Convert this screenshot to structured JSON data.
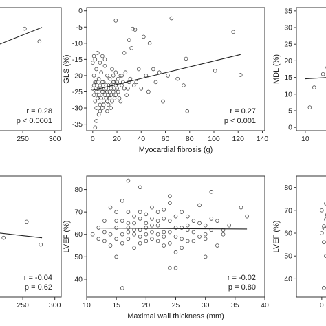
{
  "chart_data": [
    {
      "id": "p1",
      "type": "scatter",
      "title": "",
      "xlabel": "",
      "ylabel": "",
      "xlim": [
        150,
        310
      ],
      "ylim": [
        -3,
        25
      ],
      "xticks": [
        "250",
        "300"
      ],
      "xtick_values": [
        250,
        300
      ],
      "yticks": [],
      "ytick_values": [],
      "points": [
        [
          253,
          20.2
        ],
        [
          276,
          17.3
        ],
        [
          205,
          16.1
        ],
        [
          190,
          13.0
        ],
        [
          170,
          11.0
        ]
      ],
      "fit": [
        [
          150,
          13.0
        ],
        [
          280,
          20.5
        ]
      ],
      "stats": [
        "r = 0.28",
        "p < 0.0001"
      ]
    },
    {
      "id": "p2",
      "type": "scatter",
      "title": "",
      "xlabel": "Myocardial fibrosis (g)",
      "ylabel": "GLS (%)",
      "xlim": [
        -5,
        142
      ],
      "ylim": [
        -37,
        1
      ],
      "xticks": [
        "0",
        "20",
        "40",
        "60",
        "80",
        "100",
        "120",
        "140"
      ],
      "xtick_values": [
        0,
        20,
        40,
        60,
        80,
        100,
        120,
        140
      ],
      "yticks": [
        "0",
        "-5",
        "-10",
        "-15",
        "-20",
        "-25",
        "-30",
        "-35"
      ],
      "ytick_values": [
        0,
        -5,
        -10,
        -15,
        -20,
        -25,
        -30,
        -35
      ],
      "points": [
        [
          19,
          -3
        ],
        [
          65,
          -2.3
        ],
        [
          33,
          -5.5
        ],
        [
          35,
          -5.8
        ],
        [
          42,
          -8
        ],
        [
          116,
          -6.5
        ],
        [
          47,
          -10
        ],
        [
          30,
          -9
        ],
        [
          32,
          -11.5
        ],
        [
          26,
          -13
        ],
        [
          77,
          -14.8
        ],
        [
          101,
          -18.5
        ],
        [
          122,
          -19.8
        ],
        [
          50,
          -18
        ],
        [
          62,
          -20
        ],
        [
          70,
          -21
        ],
        [
          75,
          -23
        ],
        [
          78,
          -31
        ],
        [
          58,
          -28
        ],
        [
          40,
          -24
        ],
        [
          36,
          -22
        ],
        [
          28,
          -26
        ],
        [
          24,
          -20
        ],
        [
          18,
          -27
        ],
        [
          14,
          -25
        ],
        [
          12,
          -28
        ],
        [
          8,
          -30
        ],
        [
          5,
          -32
        ],
        [
          3,
          -34
        ],
        [
          2,
          -36
        ],
        [
          0,
          -16
        ],
        [
          1,
          -20
        ],
        [
          2,
          -22
        ],
        [
          3,
          -18
        ],
        [
          4,
          -24
        ],
        [
          5,
          -21
        ],
        [
          6,
          -23
        ],
        [
          7,
          -19
        ],
        [
          8,
          -25
        ],
        [
          9,
          -22
        ],
        [
          10,
          -17
        ],
        [
          11,
          -24
        ],
        [
          12,
          -20
        ],
        [
          13,
          -26
        ],
        [
          14,
          -21
        ],
        [
          15,
          -23
        ],
        [
          16,
          -18
        ],
        [
          17,
          -25
        ],
        [
          18,
          -22
        ],
        [
          19,
          -19
        ],
        [
          20,
          -24
        ],
        [
          21,
          -21
        ],
        [
          22,
          -27
        ],
        [
          23,
          -20
        ],
        [
          24,
          -23
        ],
        [
          25,
          -22
        ],
        [
          27,
          -19
        ],
        [
          29,
          -24
        ],
        [
          31,
          -21
        ],
        [
          34,
          -23
        ],
        [
          38,
          -18
        ],
        [
          44,
          -20
        ],
        [
          46,
          -25
        ],
        [
          52,
          -22
        ],
        [
          55,
          -19
        ],
        [
          0,
          -24
        ],
        [
          1,
          -26
        ],
        [
          2,
          -28
        ],
        [
          3,
          -25
        ],
        [
          4,
          -27
        ],
        [
          5,
          -26
        ],
        [
          6,
          -29
        ],
        [
          7,
          -24
        ],
        [
          8,
          -22
        ],
        [
          9,
          -28
        ],
        [
          10,
          -26
        ],
        [
          11,
          -23
        ],
        [
          12,
          -25
        ],
        [
          13,
          -29
        ],
        [
          14,
          -27
        ],
        [
          15,
          -24
        ],
        [
          16,
          -28
        ],
        [
          17,
          -22
        ],
        [
          18,
          -24
        ],
        [
          19,
          -26
        ],
        [
          20,
          -22
        ],
        [
          1,
          -14
        ],
        [
          2,
          -15
        ],
        [
          4,
          -13
        ],
        [
          6,
          -16
        ],
        [
          8,
          -14
        ],
        [
          10,
          -15
        ],
        [
          3,
          -30
        ],
        [
          6,
          -31
        ],
        [
          9,
          -29
        ],
        [
          12,
          -31
        ],
        [
          15,
          -30
        ],
        [
          1,
          -23
        ],
        [
          3,
          -22
        ],
        [
          5,
          -24
        ],
        [
          7,
          -27
        ],
        [
          9,
          -25
        ],
        [
          11,
          -27
        ],
        [
          13,
          -23
        ],
        [
          15,
          -26
        ],
        [
          17,
          -20
        ],
        [
          19,
          -23
        ],
        [
          21,
          -25
        ],
        [
          23,
          -28
        ],
        [
          26,
          -24
        ],
        [
          30,
          -22
        ]
      ],
      "fit": [
        [
          0,
          -24.5
        ],
        [
          122,
          -13.5
        ]
      ],
      "stats": [
        "r = 0.27",
        "p < 0.001"
      ]
    },
    {
      "id": "p3",
      "type": "scatter",
      "title": "",
      "xlabel": "",
      "ylabel": "MDL (%)",
      "xlim": [
        9,
        19
      ],
      "ylim": [
        -1,
        36
      ],
      "xticks": [
        "10"
      ],
      "xtick_values": [
        10
      ],
      "yticks": [
        "0",
        "5",
        "10",
        "15",
        "20",
        "25",
        "30",
        "35"
      ],
      "ytick_values": [
        0,
        5,
        10,
        15,
        20,
        25,
        30,
        35
      ],
      "points": [
        [
          13.5,
          25
        ],
        [
          15.5,
          23
        ],
        [
          11,
          12
        ],
        [
          12,
          16
        ],
        [
          13,
          14
        ],
        [
          13.5,
          12
        ],
        [
          14,
          10
        ],
        [
          14.5,
          13
        ],
        [
          15,
          8
        ],
        [
          15.5,
          11
        ],
        [
          16,
          9
        ],
        [
          16.5,
          15
        ],
        [
          17,
          12
        ],
        [
          17.5,
          7
        ],
        [
          10.5,
          6
        ],
        [
          12.5,
          18
        ],
        [
          14,
          20
        ],
        [
          16,
          18
        ],
        [
          17,
          14
        ],
        [
          17.5,
          10
        ]
      ],
      "fit": [
        [
          10,
          14.6
        ],
        [
          19,
          16.0
        ]
      ],
      "stats": []
    },
    {
      "id": "p4",
      "type": "scatter",
      "title": "",
      "xlabel": "",
      "ylabel": "",
      "xlim": [
        150,
        310
      ],
      "ylim": [
        32,
        85
      ],
      "xticks": [
        "250",
        "300"
      ],
      "xtick_values": [
        250,
        300
      ],
      "yticks": [],
      "ytick_values": [],
      "points": [
        [
          256,
          65
        ],
        [
          278,
          55
        ],
        [
          220,
          58
        ],
        [
          200,
          60
        ],
        [
          180,
          62
        ]
      ],
      "fit": [
        [
          150,
          62
        ],
        [
          280,
          58
        ]
      ],
      "stats": [
        "r = -0.04",
        "p = 0.62"
      ]
    },
    {
      "id": "p5",
      "type": "scatter",
      "title": "",
      "xlabel": "Maximal wall thickness (mm)",
      "ylabel": "LVEF (%)",
      "xlim": [
        10,
        40
      ],
      "ylim": [
        32,
        86
      ],
      "xticks": [
        "10",
        "15",
        "20",
        "25",
        "30",
        "35",
        "40"
      ],
      "xtick_values": [
        10,
        15,
        20,
        25,
        30,
        35,
        40
      ],
      "yticks": [
        "40",
        "50",
        "60",
        "70",
        "80"
      ],
      "ytick_values": [
        40,
        50,
        60,
        70,
        80
      ],
      "points": [
        [
          17,
          84
        ],
        [
          19,
          81
        ],
        [
          24,
          77
        ],
        [
          31,
          79
        ],
        [
          16,
          36
        ],
        [
          24,
          45
        ],
        [
          25,
          45
        ],
        [
          30,
          50
        ],
        [
          15,
          50
        ],
        [
          13,
          57
        ],
        [
          14,
          60
        ],
        [
          15,
          63
        ],
        [
          16,
          66
        ],
        [
          17,
          58
        ],
        [
          18,
          62
        ],
        [
          19,
          67
        ],
        [
          20,
          60
        ],
        [
          21,
          64
        ],
        [
          22,
          57
        ],
        [
          23,
          61
        ],
        [
          24,
          66
        ],
        [
          25,
          59
        ],
        [
          26,
          63
        ],
        [
          27,
          68
        ],
        [
          28,
          61
        ],
        [
          29,
          65
        ],
        [
          30,
          58
        ],
        [
          31,
          62
        ],
        [
          32,
          66
        ],
        [
          33,
          60
        ],
        [
          34,
          64
        ],
        [
          36,
          72
        ],
        [
          37,
          68
        ],
        [
          12,
          63
        ],
        [
          13,
          66
        ],
        [
          14,
          55
        ],
        [
          15,
          70
        ],
        [
          16,
          60
        ],
        [
          17,
          65
        ],
        [
          18,
          54
        ],
        [
          19,
          62
        ],
        [
          20,
          69
        ],
        [
          21,
          58
        ],
        [
          22,
          64
        ],
        [
          23,
          71
        ],
        [
          24,
          56
        ],
        [
          25,
          63
        ],
        [
          26,
          70
        ],
        [
          27,
          57
        ],
        [
          28,
          66
        ],
        [
          29,
          73
        ],
        [
          30,
          60
        ],
        [
          31,
          67
        ],
        [
          32,
          55
        ],
        [
          33,
          62
        ],
        [
          14,
          72
        ],
        [
          15,
          58
        ],
        [
          16,
          75
        ],
        [
          17,
          61
        ],
        [
          18,
          68
        ],
        [
          19,
          56
        ],
        [
          20,
          65
        ],
        [
          21,
          72
        ],
        [
          22,
          60
        ],
        [
          23,
          67
        ],
        [
          24,
          74
        ],
        [
          25,
          52
        ],
        [
          26,
          58
        ],
        [
          27,
          64
        ],
        [
          18,
          60
        ],
        [
          17,
          70
        ],
        [
          16,
          56
        ],
        [
          15,
          66
        ],
        [
          19,
          59
        ],
        [
          20,
          63
        ],
        [
          21,
          67
        ],
        [
          22,
          70
        ],
        [
          23,
          55
        ],
        [
          24,
          61
        ],
        [
          25,
          68
        ],
        [
          26,
          54
        ],
        [
          27,
          62
        ],
        [
          28,
          57
        ],
        [
          29,
          59
        ],
        [
          30,
          64
        ],
        [
          17,
          63
        ],
        [
          18,
          65
        ],
        [
          19,
          70
        ],
        [
          20,
          57
        ],
        [
          21,
          61
        ],
        [
          22,
          66
        ],
        [
          23,
          59
        ],
        [
          12,
          58
        ],
        [
          13,
          61
        ],
        [
          11,
          60
        ]
      ],
      "fit": [
        [
          12,
          62.8
        ],
        [
          37,
          62.4
        ]
      ],
      "stats": [
        "r = -0.02",
        "p = 0.80"
      ]
    },
    {
      "id": "p6",
      "type": "scatter",
      "title": "",
      "xlabel": "",
      "ylabel": "LVEF (%)",
      "xlim": [
        -1.2,
        3
      ],
      "ylim": [
        32,
        85
      ],
      "xticks": [
        "0"
      ],
      "xtick_values": [
        0
      ],
      "yticks": [
        "40",
        "50",
        "60",
        "70",
        "80"
      ],
      "ytick_values": [
        40,
        50,
        60,
        70,
        80
      ],
      "points": [
        [
          0.1,
          36
        ],
        [
          0.3,
          46
        ],
        [
          0.2,
          50
        ],
        [
          0.5,
          52
        ],
        [
          1.2,
          54
        ],
        [
          1.6,
          80
        ],
        [
          2.2,
          74
        ],
        [
          0.0,
          60
        ],
        [
          0.1,
          63
        ],
        [
          0.2,
          66
        ],
        [
          0.3,
          58
        ],
        [
          0.4,
          62
        ],
        [
          0.5,
          69
        ],
        [
          0.6,
          61
        ],
        [
          0.7,
          64
        ],
        [
          0.8,
          57
        ],
        [
          0.9,
          67
        ],
        [
          1.0,
          60
        ],
        [
          1.1,
          72
        ],
        [
          1.3,
          63
        ],
        [
          1.4,
          59
        ],
        [
          1.5,
          68
        ],
        [
          1.7,
          61
        ],
        [
          1.8,
          65
        ],
        [
          1.9,
          70
        ],
        [
          2.0,
          58
        ],
        [
          2.1,
          64
        ],
        [
          2.3,
          67
        ],
        [
          2.4,
          62
        ],
        [
          2.5,
          71
        ],
        [
          0.0,
          70
        ],
        [
          0.1,
          56
        ],
        [
          0.2,
          73
        ],
        [
          0.3,
          65
        ],
        [
          0.4,
          54
        ],
        [
          0.5,
          60
        ],
        [
          0.6,
          75
        ],
        [
          0.7,
          58
        ],
        [
          0.8,
          63
        ],
        [
          0.9,
          55
        ],
        [
          1.0,
          66
        ],
        [
          1.1,
          61
        ],
        [
          1.2,
          69
        ],
        [
          1.3,
          57
        ],
        [
          1.4,
          72
        ],
        [
          1.5,
          64
        ],
        [
          1.6,
          59
        ],
        [
          1.7,
          66
        ],
        [
          1.8,
          62
        ],
        [
          1.9,
          56
        ],
        [
          2.0,
          68
        ],
        [
          2.1,
          60
        ],
        [
          2.2,
          63
        ],
        [
          2.3,
          58
        ],
        [
          2.4,
          65
        ],
        [
          0.15,
          62
        ],
        [
          0.35,
          64
        ],
        [
          0.55,
          63
        ],
        [
          0.75,
          61
        ],
        [
          0.95,
          65
        ],
        [
          1.15,
          63
        ],
        [
          1.35,
          66
        ],
        [
          1.55,
          62
        ],
        [
          1.75,
          64
        ],
        [
          1.95,
          63
        ],
        [
          2.15,
          61
        ],
        [
          0.25,
          68
        ],
        [
          0.45,
          57
        ],
        [
          0.65,
          71
        ],
        [
          0.85,
          59
        ],
        [
          1.05,
          74
        ],
        [
          1.25,
          56
        ],
        [
          1.45,
          62
        ],
        [
          1.65,
          70
        ],
        [
          1.85,
          58
        ],
        [
          2.05,
          66
        ]
      ],
      "fit": [
        [
          0,
          62.2
        ],
        [
          3,
          63.5
        ]
      ],
      "stats": []
    }
  ]
}
